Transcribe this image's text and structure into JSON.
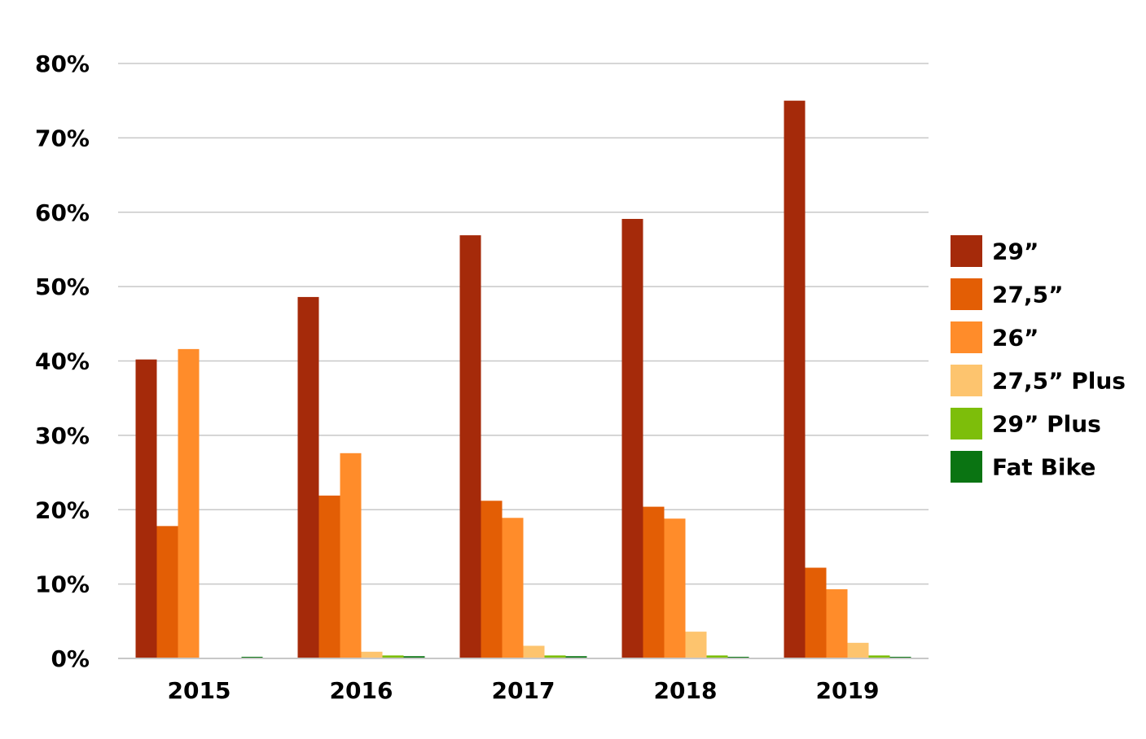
{
  "chart_data": {
    "type": "bar",
    "categories": [
      "2015",
      "2016",
      "2017",
      "2018",
      "2019"
    ],
    "series": [
      {
        "name": "29”",
        "color": "#A52A0A",
        "values": [
          40.2,
          48.6,
          56.9,
          59.1,
          75.0
        ]
      },
      {
        "name": "27,5”",
        "color": "#E35E05",
        "values": [
          17.8,
          21.9,
          21.2,
          20.4,
          12.2
        ]
      },
      {
        "name": "26”",
        "color": "#FF8C2A",
        "values": [
          41.6,
          27.6,
          18.9,
          18.8,
          9.3
        ]
      },
      {
        "name": "27,5” Plus",
        "color": "#FDC46E",
        "values": [
          0,
          0.9,
          1.7,
          3.6,
          2.1
        ]
      },
      {
        "name": "29” Plus",
        "color": "#7DBE0A",
        "values": [
          0,
          0.4,
          0.4,
          0.4,
          0.4
        ]
      },
      {
        "name": "Fat Bike",
        "color": "#0A7412",
        "values": [
          0.1,
          0.3,
          0.3,
          0.1,
          0.1
        ]
      }
    ],
    "y_ticks": [
      "0%",
      "10%",
      "20%",
      "30%",
      "40%",
      "50%",
      "60%",
      "70%",
      "80%"
    ],
    "ylim": [
      0,
      80
    ],
    "grid": true,
    "gridline_color": "#C8C8C8",
    "legend_position": "right",
    "title": "",
    "xlabel": "",
    "ylabel": ""
  }
}
